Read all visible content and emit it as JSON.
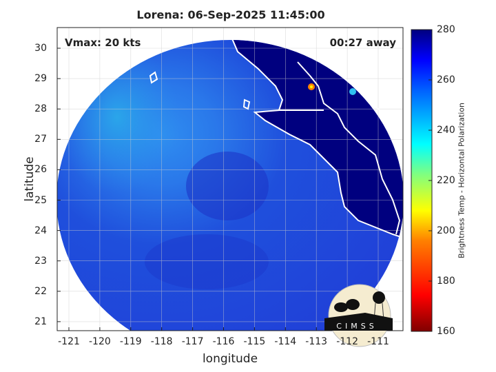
{
  "title": "Lorena: 06-Sep-2025 11:45:00",
  "annotations": {
    "vmax": "Vmax: 20 kts",
    "away": "00:27 away"
  },
  "axes": {
    "xlabel": "longitude",
    "ylabel": "latitude",
    "xticks": [
      "-121",
      "-120",
      "-119",
      "-118",
      "-117",
      "-116",
      "-115",
      "-114",
      "-113",
      "-112",
      "-111"
    ],
    "yticks": [
      "30",
      "29",
      "28",
      "27",
      "26",
      "25",
      "24",
      "23",
      "22",
      "21"
    ],
    "xlim": [
      -121.4,
      -110.2
    ],
    "ylim": [
      20.7,
      30.7
    ],
    "grid": true
  },
  "colorbar": {
    "label": "Brightness Temp - Horizontal Polarization",
    "ticks": [
      "280",
      "260",
      "240",
      "220",
      "200",
      "180",
      "160"
    ],
    "range": [
      160,
      280
    ],
    "colormap": "jet"
  },
  "logo": {
    "text": "CIMSS"
  },
  "colors": {
    "land": "#00007f",
    "ocean_cold": "#1a3fd6",
    "ocean_warm": "#1aa8e8",
    "coastline": "#ffffff"
  }
}
